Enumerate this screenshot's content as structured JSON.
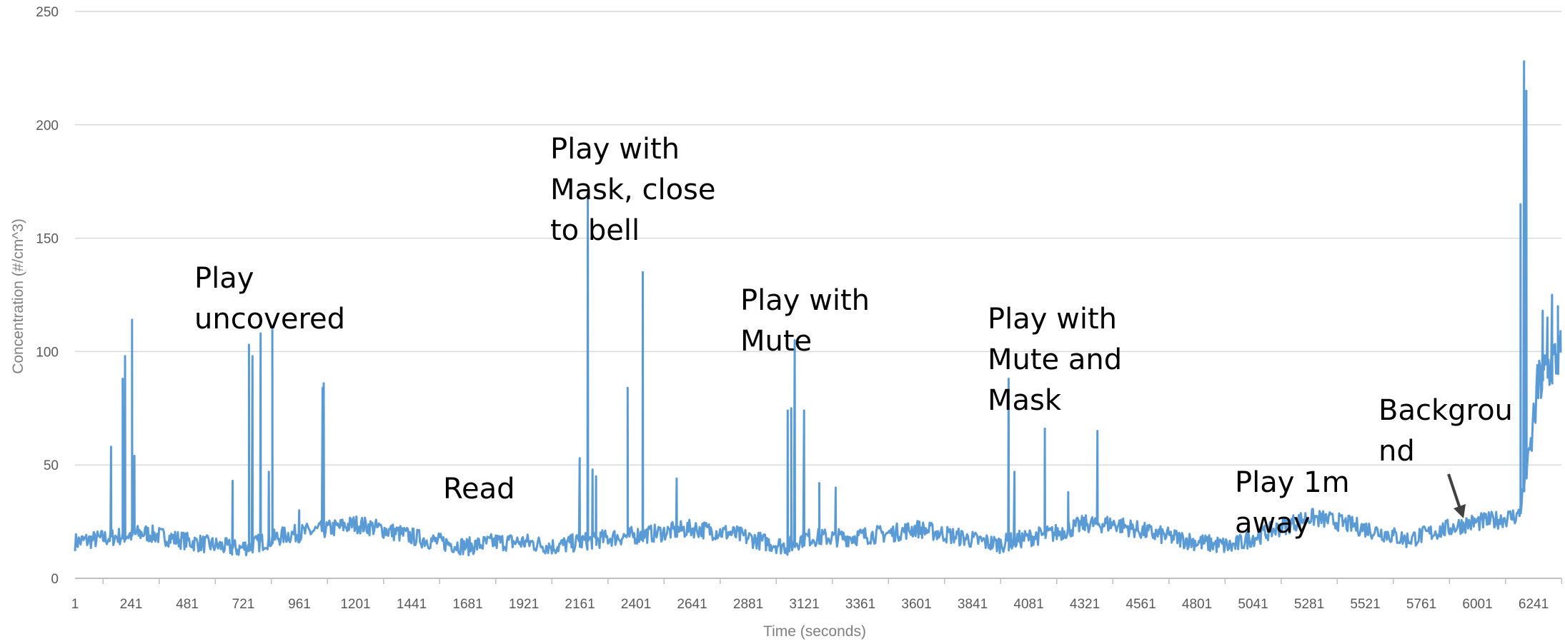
{
  "chart_data": {
    "type": "line",
    "xlabel": "Time (seconds)",
    "ylabel": "Concentration (#/cm^3)",
    "ylim": [
      0,
      250
    ],
    "xlim": [
      1,
      6360
    ],
    "y_ticks": [
      0,
      50,
      100,
      150,
      200,
      250
    ],
    "x_ticks": [
      1,
      241,
      481,
      721,
      961,
      1201,
      1441,
      1681,
      1921,
      2161,
      2401,
      2641,
      2881,
      3121,
      3361,
      3601,
      3841,
      4081,
      4321,
      4561,
      4801,
      5041,
      5281,
      5521,
      5761,
      6001,
      6241
    ],
    "grid": "horizontal",
    "line_color": "#5b9bd5",
    "series": [
      {
        "baseline": [
          [
            1,
            16
          ],
          [
            300,
            20
          ],
          [
            500,
            16
          ],
          [
            700,
            13
          ],
          [
            800,
            16
          ],
          [
            900,
            19
          ],
          [
            1100,
            22
          ],
          [
            1200,
            24
          ],
          [
            1300,
            22
          ],
          [
            1500,
            17
          ],
          [
            1680,
            14
          ],
          [
            1800,
            16
          ],
          [
            1921,
            16
          ],
          [
            2050,
            14
          ],
          [
            2161,
            16
          ],
          [
            2300,
            18
          ],
          [
            2500,
            20
          ],
          [
            2641,
            22
          ],
          [
            2800,
            20
          ],
          [
            2950,
            16
          ],
          [
            3050,
            14
          ],
          [
            3121,
            18
          ],
          [
            3300,
            18
          ],
          [
            3500,
            20
          ],
          [
            3601,
            22
          ],
          [
            3700,
            20
          ],
          [
            3841,
            17
          ],
          [
            3950,
            15
          ],
          [
            4081,
            18
          ],
          [
            4200,
            20
          ],
          [
            4321,
            24
          ],
          [
            4450,
            24
          ],
          [
            4600,
            20
          ],
          [
            4801,
            16
          ],
          [
            4950,
            14
          ],
          [
            5041,
            18
          ],
          [
            5200,
            24
          ],
          [
            5281,
            27
          ],
          [
            5400,
            25
          ],
          [
            5600,
            20
          ],
          [
            5700,
            17
          ],
          [
            5800,
            20
          ],
          [
            5950,
            24
          ],
          [
            6100,
            26
          ],
          [
            6180,
            28
          ],
          [
            6230,
            60
          ],
          [
            6260,
            85
          ],
          [
            6300,
            92
          ],
          [
            6360,
            100
          ]
        ],
        "spikes": [
          [
            155,
            58
          ],
          [
            205,
            88
          ],
          [
            215,
            98
          ],
          [
            245,
            114
          ],
          [
            255,
            54
          ],
          [
            675,
            43
          ],
          [
            745,
            103
          ],
          [
            760,
            98
          ],
          [
            795,
            108
          ],
          [
            830,
            47
          ],
          [
            845,
            110
          ],
          [
            960,
            30
          ],
          [
            1060,
            84
          ],
          [
            1065,
            86
          ],
          [
            2160,
            53
          ],
          [
            2195,
            170
          ],
          [
            2215,
            48
          ],
          [
            2230,
            45
          ],
          [
            2365,
            84
          ],
          [
            2430,
            135
          ],
          [
            2575,
            44
          ],
          [
            3050,
            74
          ],
          [
            3065,
            75
          ],
          [
            3080,
            105
          ],
          [
            3120,
            74
          ],
          [
            3185,
            42
          ],
          [
            3255,
            40
          ],
          [
            3995,
            88
          ],
          [
            4020,
            47
          ],
          [
            4150,
            66
          ],
          [
            4250,
            38
          ],
          [
            4375,
            65
          ],
          [
            6185,
            165
          ],
          [
            6200,
            228
          ],
          [
            6210,
            215
          ],
          [
            6260,
            80
          ],
          [
            6280,
            118
          ],
          [
            6300,
            115
          ],
          [
            6320,
            125
          ],
          [
            6345,
            120
          ],
          [
            6355,
            104
          ]
        ]
      }
    ],
    "annotations": [
      {
        "label": "play_uncovered",
        "lines": [
          "Play",
          "uncovered"
        ]
      },
      {
        "label": "read",
        "lines": [
          "Read"
        ]
      },
      {
        "label": "play_mask",
        "lines": [
          "Play with",
          "Mask, close",
          "to bell"
        ]
      },
      {
        "label": "play_mute",
        "lines": [
          "Play with",
          "Mute"
        ]
      },
      {
        "label": "play_mute_mask",
        "lines": [
          "Play with",
          "Mute and",
          "Mask"
        ]
      },
      {
        "label": "play_1m",
        "lines": [
          "Play 1m",
          "away"
        ]
      },
      {
        "label": "background",
        "lines": [
          "Backgrou",
          "nd"
        ]
      }
    ]
  }
}
